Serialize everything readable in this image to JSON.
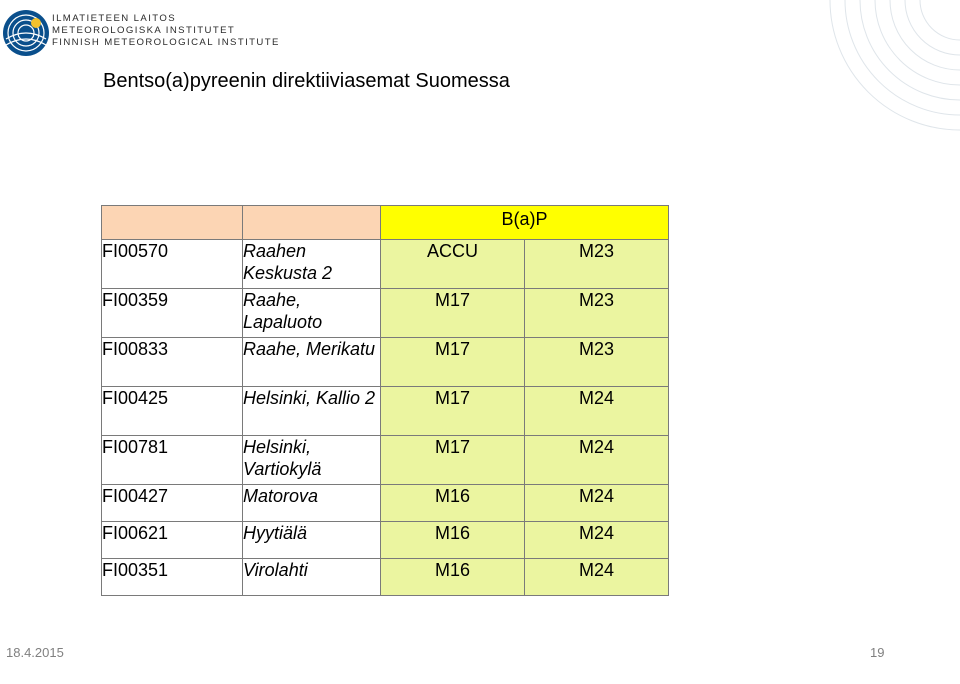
{
  "header": {
    "org_lines": [
      "ILMATIETEEN LAITOS",
      "METEOROLOGISKA INSTITUTET",
      "FINNISH METEOROLOGICAL INSTITUTE"
    ]
  },
  "slide": {
    "title": "Bentso(a)pyreenin direktiiviasemat Suomessa"
  },
  "table": {
    "group_header": "B(a)P",
    "rows": [
      {
        "id": "FI00570",
        "place": "Raahen Keskusta 2",
        "col3": "ACCU",
        "col4": "M23"
      },
      {
        "id": "FI00359",
        "place": "Raahe, Lapaluoto",
        "col3": "M17",
        "col4": "M23"
      },
      {
        "id": "FI00833",
        "place": "Raahe, Merikatu",
        "col3": "M17",
        "col4": "M23"
      },
      {
        "id": "FI00425",
        "place": "Helsinki, Kallio 2",
        "col3": "M17",
        "col4": "M24"
      },
      {
        "id": "FI00781",
        "place": "Helsinki, Vartiokylä",
        "col3": "M17",
        "col4": "M24"
      },
      {
        "id": "FI00427",
        "place": "Matorova",
        "col3": "M16",
        "col4": "M24"
      },
      {
        "id": "FI00621",
        "place": "Hyytiälä",
        "col3": "M16",
        "col4": "M24"
      },
      {
        "id": "FI00351",
        "place": "Virolahti",
        "col3": "M16",
        "col4": "M24"
      }
    ]
  },
  "footer": {
    "date": "18.4.2015",
    "page": "19"
  },
  "colors": {
    "header_orange": "#fcd5b4",
    "header_yellow": "#ffff00",
    "cell_green": "#ebf5a0"
  }
}
